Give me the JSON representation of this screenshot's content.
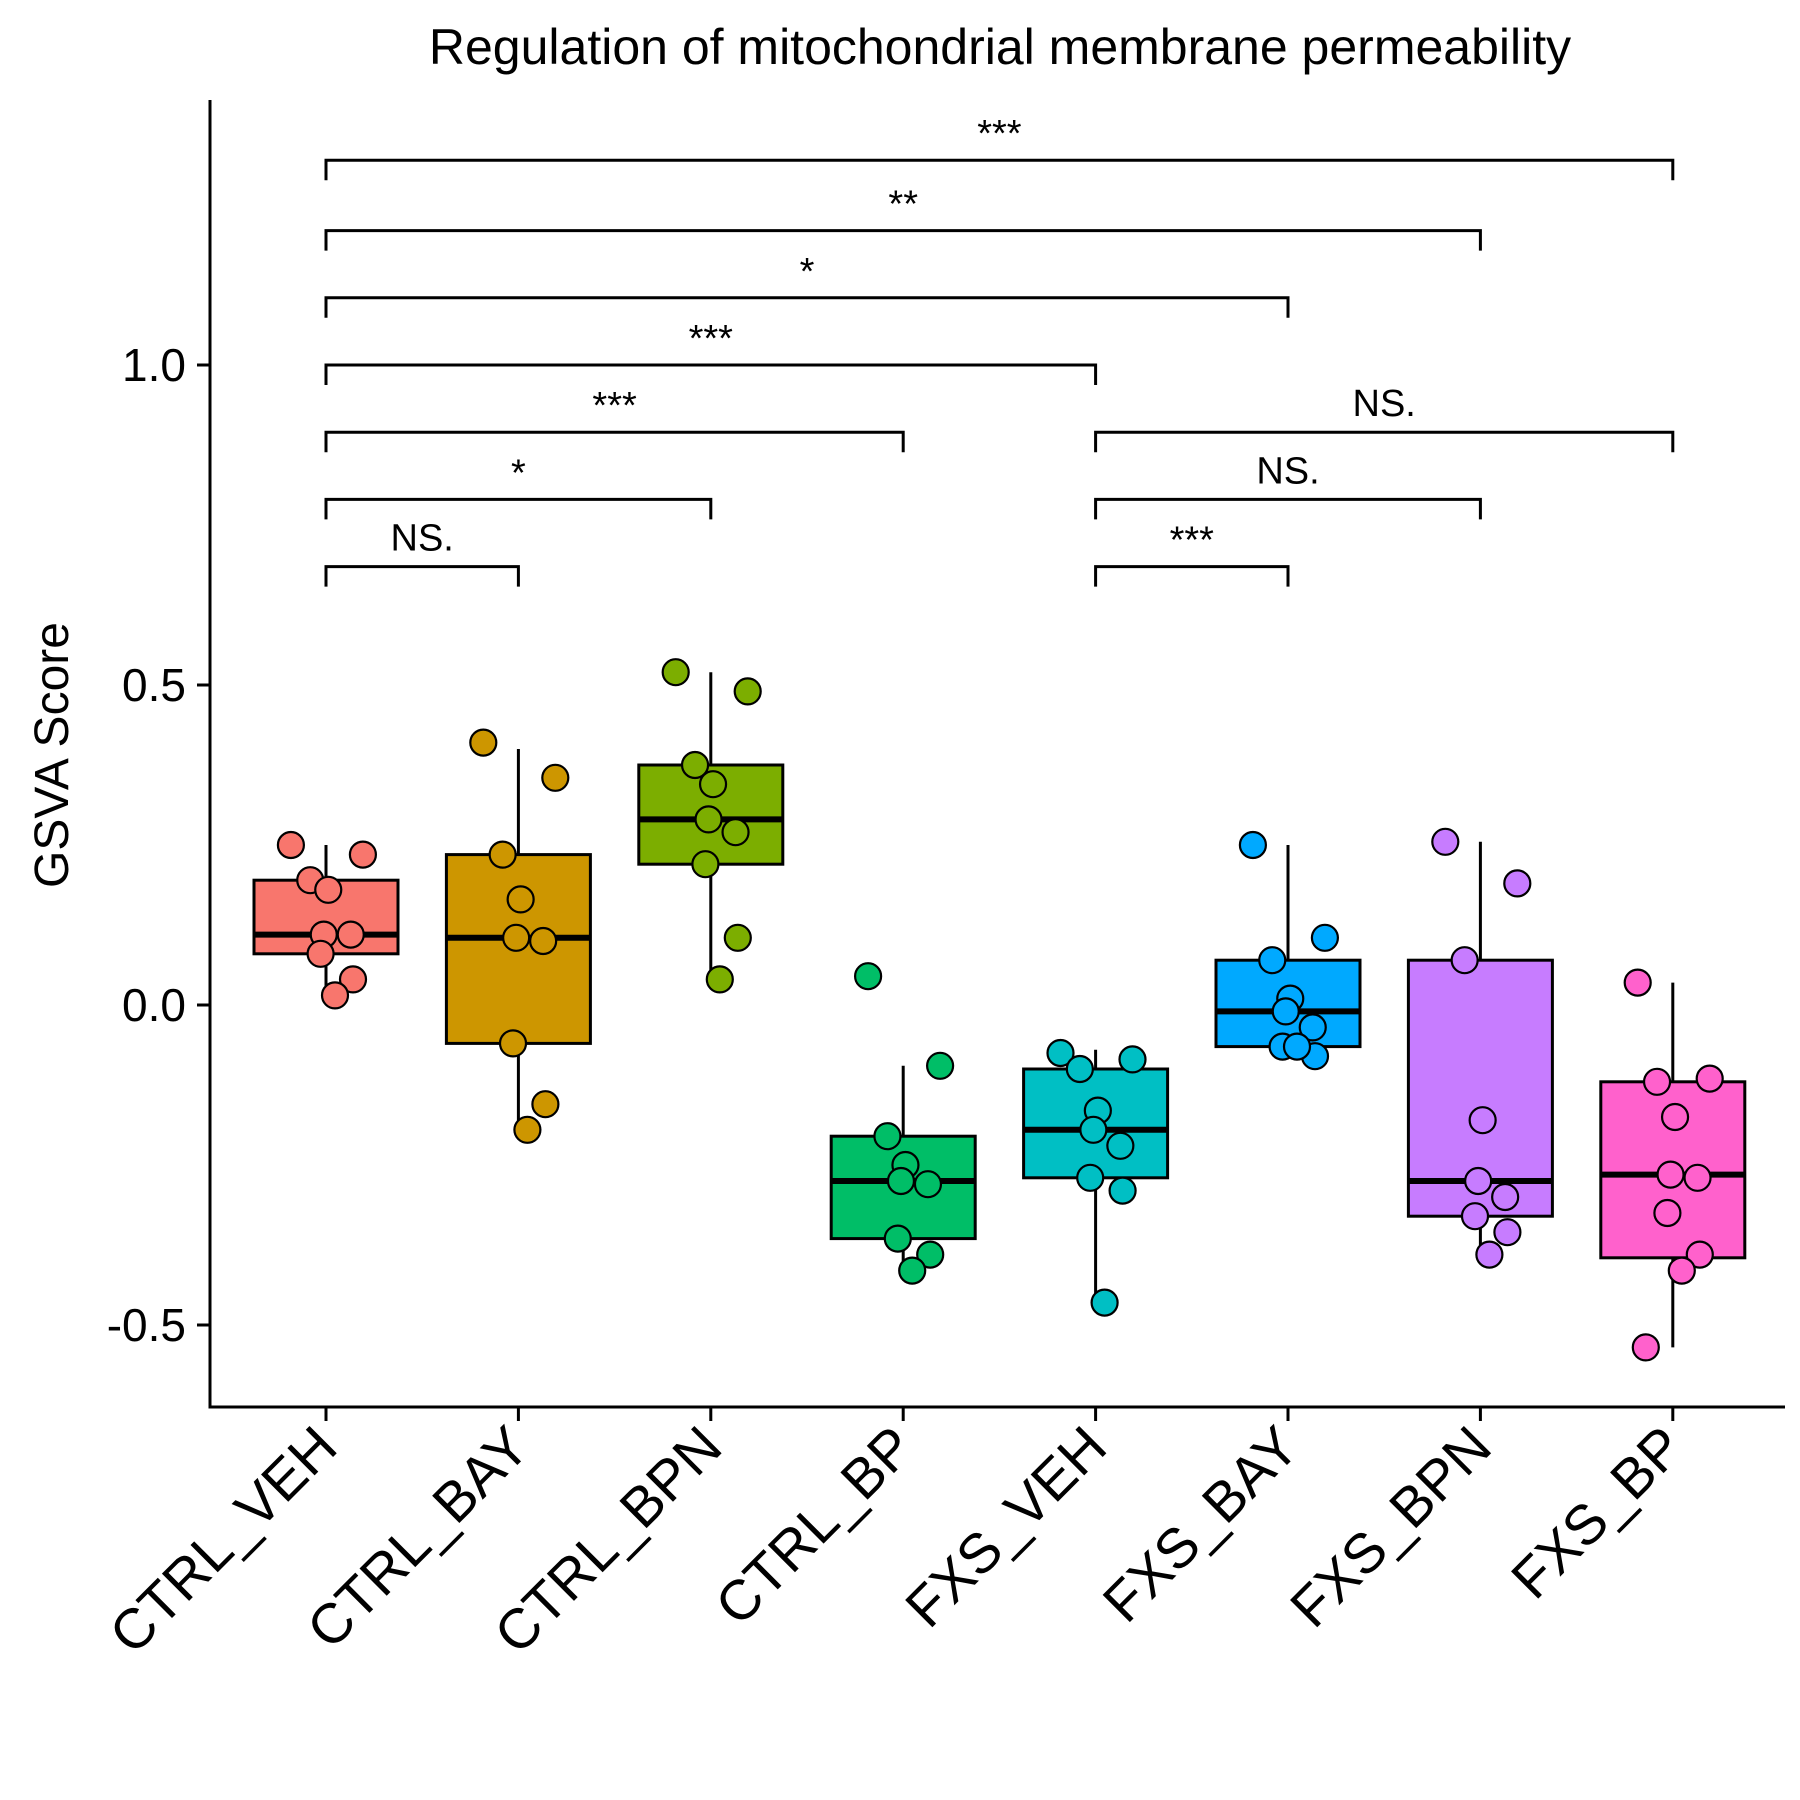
{
  "chart_data": {
    "type": "box",
    "title": "Regulation of mitochondrial membrane permeability",
    "xlabel": "",
    "ylabel": "GSVA Score",
    "ylim": [
      -0.62,
      1.37
    ],
    "yticks": [
      -0.5,
      0.0,
      0.5,
      1.0
    ],
    "ytick_labels": [
      "-0.5",
      "0.0",
      "0.5",
      "1.0"
    ],
    "grid": false,
    "legend": "none",
    "groups": [
      {
        "name": "CTRL_VEH",
        "color": "#F8766D",
        "box": {
          "whisker_low": 0.02,
          "q1": 0.08,
          "median": 0.11,
          "q3": 0.195,
          "whisker_high": 0.25
        },
        "points": [
          0.25,
          0.235,
          0.195,
          0.18,
          0.11,
          0.11,
          0.08,
          0.04,
          0.015
        ]
      },
      {
        "name": "CTRL_BAY",
        "color": "#CD9600",
        "box": {
          "whisker_low": -0.195,
          "q1": -0.06,
          "median": 0.105,
          "q3": 0.235,
          "whisker_high": 0.4
        },
        "points": [
          0.41,
          0.355,
          0.235,
          0.165,
          0.105,
          0.1,
          -0.06,
          -0.155,
          -0.195
        ]
      },
      {
        "name": "CTRL_BPN",
        "color": "#7CAE00",
        "box": {
          "whisker_low": 0.04,
          "q1": 0.22,
          "median": 0.29,
          "q3": 0.375,
          "whisker_high": 0.52
        },
        "points": [
          0.52,
          0.49,
          0.375,
          0.345,
          0.29,
          0.27,
          0.22,
          0.105,
          0.04
        ]
      },
      {
        "name": "CTRL_BP",
        "color": "#00BE67",
        "box": {
          "whisker_low": -0.415,
          "q1": -0.365,
          "median": -0.275,
          "q3": -0.205,
          "whisker_high": -0.095
        },
        "points": [
          0.045,
          -0.095,
          -0.205,
          -0.25,
          -0.275,
          -0.28,
          -0.365,
          -0.39,
          -0.415
        ]
      },
      {
        "name": "FXS_VEH",
        "color": "#00BFC4",
        "box": {
          "whisker_low": -0.465,
          "q1": -0.27,
          "median": -0.195,
          "q3": -0.1,
          "whisker_high": -0.07
        },
        "points": [
          -0.075,
          -0.085,
          -0.1,
          -0.165,
          -0.195,
          -0.22,
          -0.27,
          -0.29,
          -0.465
        ]
      },
      {
        "name": "FXS_BAY",
        "color": "#00A9FF",
        "box": {
          "whisker_low": -0.08,
          "q1": -0.065,
          "median": -0.01,
          "q3": 0.07,
          "whisker_high": 0.25
        },
        "points": [
          0.25,
          0.105,
          0.07,
          0.01,
          -0.01,
          -0.035,
          -0.065,
          -0.08,
          -0.065
        ]
      },
      {
        "name": "FXS_BPN",
        "color": "#C77CFF",
        "box": {
          "whisker_low": -0.39,
          "q1": -0.33,
          "median": -0.275,
          "q3": 0.07,
          "whisker_high": 0.255
        },
        "points": [
          0.255,
          0.19,
          0.07,
          -0.18,
          -0.275,
          -0.3,
          -0.33,
          -0.355,
          -0.39
        ]
      },
      {
        "name": "FXS_BP",
        "color": "#FF61CC",
        "box": {
          "whisker_low": -0.535,
          "q1": -0.395,
          "median": -0.265,
          "q3": -0.12,
          "whisker_high": 0.035
        },
        "points": [
          0.035,
          -0.115,
          -0.12,
          -0.175,
          -0.265,
          -0.27,
          -0.325,
          -0.39,
          -0.415,
          -0.535
        ]
      }
    ],
    "comparisons": [
      {
        "from": "CTRL_VEH",
        "to": "CTRL_BAY",
        "y": 0.685,
        "label": "NS."
      },
      {
        "from": "CTRL_VEH",
        "to": "CTRL_BPN",
        "y": 0.79,
        "label": "*"
      },
      {
        "from": "CTRL_VEH",
        "to": "CTRL_BP",
        "y": 0.895,
        "label": "***"
      },
      {
        "from": "CTRL_VEH",
        "to": "FXS_VEH",
        "y": 1.0,
        "label": "***"
      },
      {
        "from": "CTRL_VEH",
        "to": "FXS_BAY",
        "y": 1.105,
        "label": "*"
      },
      {
        "from": "CTRL_VEH",
        "to": "FXS_BPN",
        "y": 1.21,
        "label": "**"
      },
      {
        "from": "CTRL_VEH",
        "to": "FXS_BP",
        "y": 1.32,
        "label": "***"
      },
      {
        "from": "FXS_VEH",
        "to": "FXS_BAY",
        "y": 0.685,
        "label": "***"
      },
      {
        "from": "FXS_VEH",
        "to": "FXS_BPN",
        "y": 0.79,
        "label": "NS."
      },
      {
        "from": "FXS_VEH",
        "to": "FXS_BP",
        "y": 0.895,
        "label": "NS."
      }
    ]
  }
}
